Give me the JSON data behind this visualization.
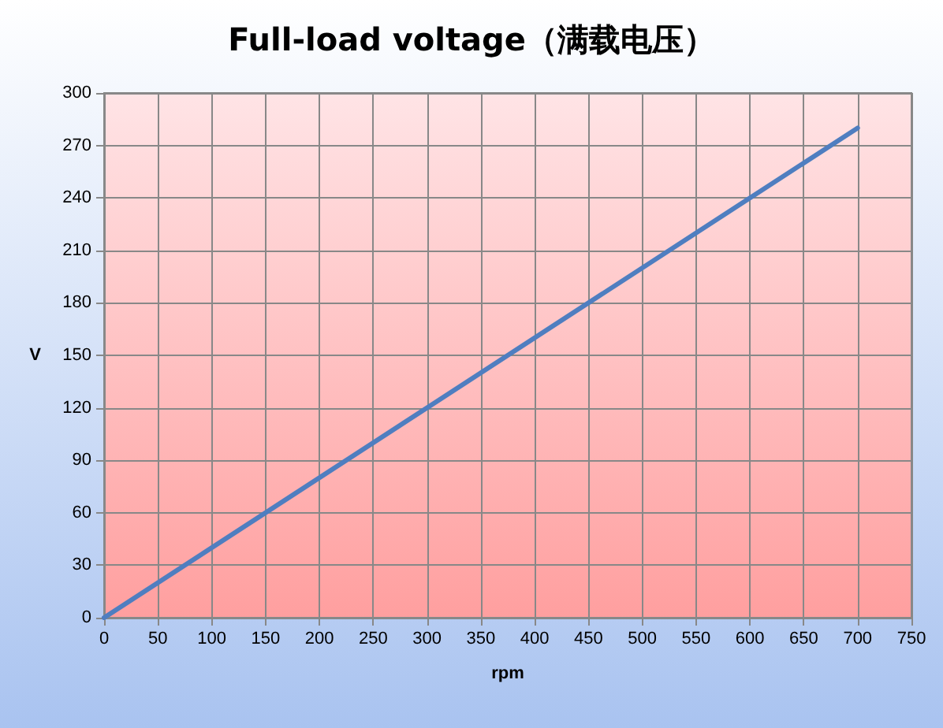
{
  "chart_data": {
    "type": "line",
    "title": "Full-load voltage（满载电压）",
    "xlabel": "rpm",
    "ylabel": "V",
    "x": [
      0,
      700
    ],
    "series": [
      {
        "color": "#4f7ec0",
        "values": [
          0,
          280
        ]
      }
    ],
    "xlim": [
      0,
      750
    ],
    "xticks": [
      0,
      50,
      100,
      150,
      200,
      250,
      300,
      350,
      400,
      450,
      500,
      550,
      600,
      650,
      700,
      750
    ],
    "ylim": [
      0,
      300
    ],
    "yticks": [
      0,
      30,
      60,
      90,
      120,
      150,
      180,
      210,
      240,
      270,
      300
    ],
    "grid": true,
    "marker": "none",
    "line_style": "solid"
  }
}
